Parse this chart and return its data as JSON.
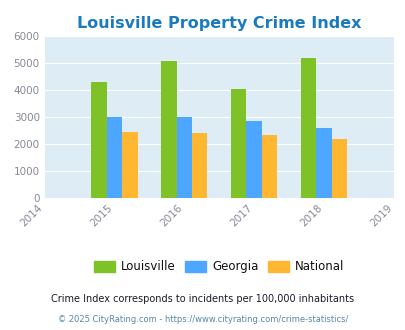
{
  "title": "Louisville Property Crime Index",
  "years": [
    2014,
    2015,
    2016,
    2017,
    2018,
    2019
  ],
  "data_years": [
    2015,
    2016,
    2017,
    2018
  ],
  "louisville": [
    4300,
    5100,
    4050,
    5200
  ],
  "georgia": [
    3000,
    3000,
    2850,
    2600
  ],
  "national": [
    2450,
    2400,
    2350,
    2200
  ],
  "color_louisville": "#7ec227",
  "color_georgia": "#4da6ff",
  "color_national": "#ffb732",
  "bg_color": "#deedf5",
  "ylim": [
    0,
    6000
  ],
  "yticks": [
    0,
    1000,
    2000,
    3000,
    4000,
    5000,
    6000
  ],
  "bar_width": 0.22,
  "legend_labels": [
    "Louisville",
    "Georgia",
    "National"
  ],
  "footnote1": "Crime Index corresponds to incidents per 100,000 inhabitants",
  "footnote2": "© 2025 CityRating.com - https://www.cityrating.com/crime-statistics/",
  "title_color": "#1a7abf",
  "footnote1_color": "#1a1a2e",
  "footnote2_color": "#5588aa",
  "tick_color": "#888899",
  "legend_text_color": "#111111"
}
